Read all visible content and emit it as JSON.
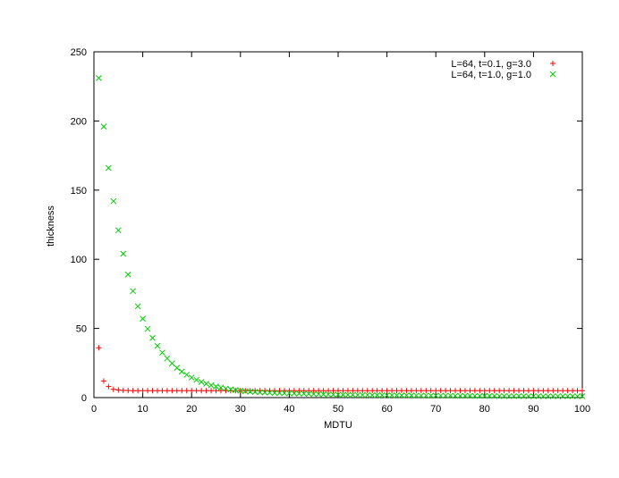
{
  "chart_data": {
    "type": "scatter",
    "title": "",
    "xlabel": "MDTU",
    "ylabel": "thickness",
    "xlim": [
      0,
      100
    ],
    "ylim": [
      0,
      250
    ],
    "xticks": [
      0,
      10,
      20,
      30,
      40,
      50,
      60,
      70,
      80,
      90,
      100
    ],
    "yticks": [
      0,
      50,
      100,
      150,
      200,
      250
    ],
    "grid": false,
    "legend_position": "top-right",
    "series": [
      {
        "name": "L=64, t=0.1, g=3.0",
        "marker": "plus",
        "color": "#ff0000",
        "x": [
          1,
          2,
          3,
          4,
          5,
          6,
          7,
          8,
          9,
          10,
          11,
          12,
          13,
          14,
          15,
          16,
          17,
          18,
          19,
          20,
          21,
          22,
          23,
          24,
          25,
          26,
          27,
          28,
          29,
          30,
          31,
          32,
          33,
          34,
          35,
          36,
          37,
          38,
          39,
          40,
          41,
          42,
          43,
          44,
          45,
          46,
          47,
          48,
          49,
          50,
          51,
          52,
          53,
          54,
          55,
          56,
          57,
          58,
          59,
          60,
          61,
          62,
          63,
          64,
          65,
          66,
          67,
          68,
          69,
          70,
          71,
          72,
          73,
          74,
          75,
          76,
          77,
          78,
          79,
          80,
          81,
          82,
          83,
          84,
          85,
          86,
          87,
          88,
          89,
          90,
          91,
          92,
          93,
          94,
          95,
          96,
          97,
          98,
          99,
          100
        ],
        "y": [
          36,
          12,
          8,
          6,
          5.5,
          5.2,
          5.1,
          5,
          5,
          5,
          5,
          5,
          5,
          5,
          5,
          5,
          5,
          5,
          5,
          5,
          5,
          5,
          5,
          5,
          5,
          5,
          5,
          5,
          5,
          5,
          5,
          5,
          5,
          5,
          5,
          5,
          5,
          5,
          5,
          5,
          5,
          5,
          5,
          5,
          5,
          5,
          5,
          5,
          5,
          5,
          5,
          5,
          5,
          5,
          5,
          5,
          5,
          5,
          5,
          5,
          5,
          5,
          5,
          5,
          5,
          5,
          5,
          5,
          5,
          5,
          5,
          5,
          5,
          5,
          5,
          5,
          5,
          5,
          5,
          5,
          5,
          5,
          5,
          5,
          5,
          5,
          5,
          5,
          5,
          5,
          5,
          5,
          5,
          5,
          5,
          5,
          5,
          5,
          5,
          5
        ]
      },
      {
        "name": "L=64, t=1.0, g=1.0",
        "marker": "cross",
        "color": "#00cc00",
        "x": [
          1,
          2,
          3,
          4,
          5,
          6,
          7,
          8,
          9,
          10,
          11,
          12,
          13,
          14,
          15,
          16,
          17,
          18,
          19,
          20,
          21,
          22,
          23,
          24,
          25,
          26,
          27,
          28,
          29,
          30,
          31,
          32,
          33,
          34,
          35,
          36,
          37,
          38,
          39,
          40,
          41,
          42,
          43,
          44,
          45,
          46,
          47,
          48,
          49,
          50,
          51,
          52,
          53,
          54,
          55,
          56,
          57,
          58,
          59,
          60,
          61,
          62,
          63,
          64,
          65,
          66,
          67,
          68,
          69,
          70,
          71,
          72,
          73,
          74,
          75,
          76,
          77,
          78,
          79,
          80,
          81,
          82,
          83,
          84,
          85,
          86,
          87,
          88,
          89,
          90,
          91,
          92,
          93,
          94,
          95,
          96,
          97,
          98,
          99,
          100
        ],
        "y": [
          231,
          196,
          166,
          142,
          121,
          104,
          89,
          77,
          66,
          57,
          49.7,
          43.1,
          37.4,
          32.5,
          28.3,
          24.7,
          21.5,
          18.8,
          16.5,
          14.5,
          12.8,
          11.3,
          10.0,
          8.9,
          8.0,
          7.2,
          6.5,
          5.9,
          5.4,
          5.0,
          4.6,
          4.3,
          4.1,
          3.9,
          3.7,
          3.5,
          3.4,
          3.3,
          3.2,
          3.1,
          3.0,
          2.9,
          2.8,
          2.7,
          2.6,
          2.5,
          2.4,
          2.3,
          2.2,
          2.1,
          2.0,
          2.0,
          2.0,
          1.9,
          1.9,
          1.9,
          1.8,
          1.8,
          1.8,
          1.7,
          1.7,
          1.7,
          1.6,
          1.6,
          1.6,
          1.5,
          1.5,
          1.5,
          1.5,
          1.4,
          1.4,
          1.4,
          1.4,
          1.3,
          1.3,
          1.3,
          1.3,
          1.2,
          1.2,
          1.2,
          1.2,
          1.2,
          1.1,
          1.1,
          1.1,
          1.1,
          1.1,
          1.0,
          1.0,
          1.0,
          1.0,
          1.0,
          1.0,
          1.0,
          1.0,
          1.0,
          1.0,
          1.0,
          1.0,
          1.0
        ]
      }
    ]
  }
}
